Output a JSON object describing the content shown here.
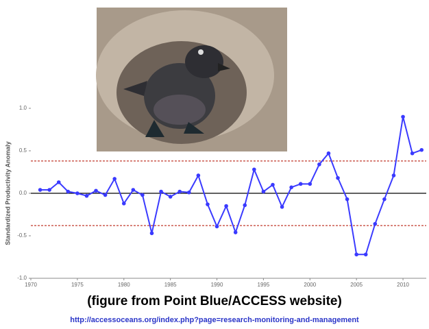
{
  "chart_data": {
    "type": "line",
    "y_label": "Standardized Productivity Anomaly",
    "x": [
      1971,
      1972,
      1973,
      1974,
      1975,
      1976,
      1977,
      1978,
      1979,
      1980,
      1981,
      1982,
      1983,
      1984,
      1985,
      1986,
      1987,
      1988,
      1989,
      1990,
      1991,
      1992,
      1993,
      1994,
      1995,
      1996,
      1997,
      1998,
      1999,
      2000,
      2001,
      2002,
      2003,
      2004,
      2005,
      2006,
      2007,
      2008,
      2009,
      2010,
      2011,
      2012
    ],
    "values": [
      0.04,
      0.04,
      0.13,
      0.02,
      0.0,
      -0.03,
      0.03,
      -0.02,
      0.17,
      -0.12,
      0.04,
      -0.02,
      -0.47,
      0.02,
      -0.04,
      0.02,
      0.01,
      0.21,
      -0.13,
      -0.39,
      -0.15,
      -0.46,
      -0.14,
      0.28,
      0.02,
      0.1,
      -0.16,
      0.07,
      0.11,
      0.11,
      0.34,
      0.47,
      0.18,
      -0.07,
      -0.72,
      -0.72,
      -0.36,
      -0.07,
      0.21,
      0.9,
      0.47,
      0.51
    ],
    "color": "#3a3aff",
    "xlim": [
      1970,
      2012.5
    ],
    "xticks": [
      1970,
      1975,
      1980,
      1985,
      1990,
      1995,
      2000,
      2005,
      2010
    ],
    "ylim": [
      -1.0,
      1.0
    ],
    "yticks": [
      {
        "value": 1.0,
        "label": "1.0"
      },
      {
        "value": 0.5,
        "label": "0.5"
      },
      {
        "value": 0,
        "label": "0.0"
      },
      {
        "value": -0.5,
        "label": "-0.5"
      },
      {
        "value": -1.0,
        "label": "-1.0"
      }
    ],
    "reference_lines": [
      0.38,
      -0.38
    ],
    "reference_color": "#c0392b",
    "caption": "(figure from Point Blue/ACCESS website)",
    "source_url": "http://accessoceans.org/index.php?page=research-monitoring-and-management"
  }
}
